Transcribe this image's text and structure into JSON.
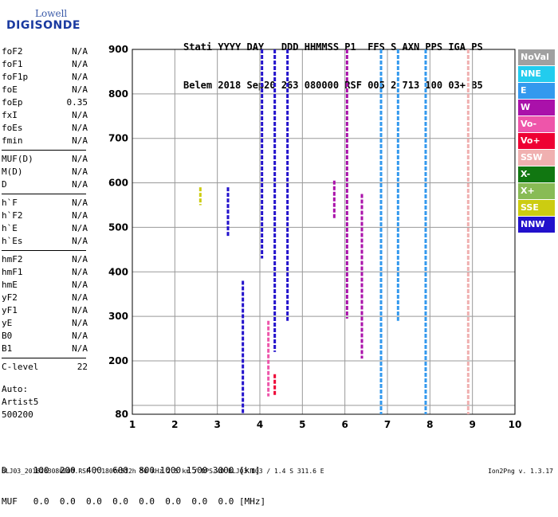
{
  "logo": {
    "line1": "Lowell",
    "line2": "DIGISONDE"
  },
  "header": {
    "line1": "Stati YYYY DAY   DDD HHMMSS P1  FFS S AXN PPS IGA PS",
    "line2": "Belem 2018 Sep20 263 080000 RSF 005 2 713 100 03+ B5"
  },
  "params": [
    {
      "name": "foF2",
      "value": "N/A"
    },
    {
      "name": "foF1",
      "value": "N/A"
    },
    {
      "name": "foF1p",
      "value": "N/A"
    },
    {
      "name": "foE",
      "value": "N/A"
    },
    {
      "name": "foEp",
      "value": "0.35"
    },
    {
      "name": "fxI",
      "value": "N/A"
    },
    {
      "name": "foEs",
      "value": "N/A"
    },
    {
      "name": "fmin",
      "value": "N/A"
    },
    {
      "name": "MUF(D)",
      "value": "N/A"
    },
    {
      "name": "M(D)",
      "value": "N/A"
    },
    {
      "name": "D",
      "value": "N/A"
    },
    {
      "name": "h`F",
      "value": "N/A"
    },
    {
      "name": "h`F2",
      "value": "N/A"
    },
    {
      "name": "h`E",
      "value": "N/A"
    },
    {
      "name": "h`Es",
      "value": "N/A"
    },
    {
      "name": "hmF2",
      "value": "N/A"
    },
    {
      "name": "hmF1",
      "value": "N/A"
    },
    {
      "name": "hmE",
      "value": "N/A"
    },
    {
      "name": "yF2",
      "value": "N/A"
    },
    {
      "name": "yF1",
      "value": "N/A"
    },
    {
      "name": "yE",
      "value": "N/A"
    },
    {
      "name": "B0",
      "value": "N/A"
    },
    {
      "name": "B1",
      "value": "N/A"
    },
    {
      "name": "C-level",
      "value": "22"
    }
  ],
  "auto": {
    "line1": "Auto:",
    "line2": "Artist5",
    "line3": "500200"
  },
  "legend": [
    {
      "label": "NoVal",
      "color": "#a0a0a0"
    },
    {
      "label": "NNE",
      "color": "#22ccee"
    },
    {
      "label": "E",
      "color": "#3399ee"
    },
    {
      "label": "W",
      "color": "#aa11aa"
    },
    {
      "label": "Vo-",
      "color": "#ee55aa"
    },
    {
      "label": "Vo+",
      "color": "#ee0033"
    },
    {
      "label": "SSW",
      "color": "#f0b0b0"
    },
    {
      "label": "X-",
      "color": "#117711"
    },
    {
      "label": "X+",
      "color": "#88bb55"
    },
    {
      "label": "SSE",
      "color": "#cccc11"
    },
    {
      "label": "NNW",
      "color": "#2211cc"
    }
  ],
  "bottom": {
    "line1": "D     100  200  400  600  800 1000 1500 3000 [km]",
    "line2": "MUF   0.0  0.0  0.0  0.0  0.0  0.0  0.0  0.0 [MHz]"
  },
  "footer": {
    "left": "BLJ03_2018263080000.RSF / 180fx512h 50 kHz 2.5 km / DPS-4D BLJ03 103 / 1.4 S 311.6 E",
    "right": "Ion2Png v. 1.3.17"
  },
  "chart_data": {
    "type": "scatter",
    "title": "",
    "xlabel": "",
    "ylabel": "",
    "xlim": [
      1,
      10
    ],
    "ylim": [
      80,
      900
    ],
    "xticks": [
      1,
      2,
      3,
      4,
      5,
      6,
      7,
      8,
      9,
      10
    ],
    "yticks": [
      100,
      200,
      300,
      400,
      500,
      600,
      700,
      800,
      900
    ],
    "ytick_labels": [
      "",
      "200",
      "300",
      "400",
      "500",
      "600",
      "700",
      "800",
      "900"
    ],
    "extra_ytick": {
      "value": 80,
      "label": "80"
    },
    "grid": true,
    "traces": [
      {
        "status": "NNW",
        "x": 3.6,
        "y_from": 80,
        "y_to": 380
      },
      {
        "status": "NNW",
        "x": 4.35,
        "y_from": 220,
        "y_to": 900
      },
      {
        "status": "NNW",
        "x": 4.65,
        "y_from": 290,
        "y_to": 900
      },
      {
        "status": "NNW",
        "x": 4.05,
        "y_from": 430,
        "y_to": 900
      },
      {
        "status": "NNW",
        "x": 3.25,
        "y_from": 480,
        "y_to": 590
      },
      {
        "status": "W",
        "x": 6.05,
        "y_from": 295,
        "y_to": 900
      },
      {
        "status": "W",
        "x": 6.4,
        "y_from": 205,
        "y_to": 575
      },
      {
        "status": "W",
        "x": 5.75,
        "y_from": 520,
        "y_to": 605
      },
      {
        "status": "E",
        "x": 6.85,
        "y_from": 80,
        "y_to": 900
      },
      {
        "status": "E",
        "x": 7.25,
        "y_from": 290,
        "y_to": 900
      },
      {
        "status": "E",
        "x": 7.9,
        "y_from": 80,
        "y_to": 900
      },
      {
        "status": "SSW",
        "x": 8.9,
        "y_from": 80,
        "y_to": 900
      },
      {
        "status": "Vo-",
        "x": 4.2,
        "y_from": 120,
        "y_to": 290
      },
      {
        "status": "Vo+",
        "x": 4.35,
        "y_from": 120,
        "y_to": 170
      },
      {
        "status": "SSE",
        "x": 2.6,
        "y_from": 550,
        "y_to": 590
      }
    ]
  }
}
